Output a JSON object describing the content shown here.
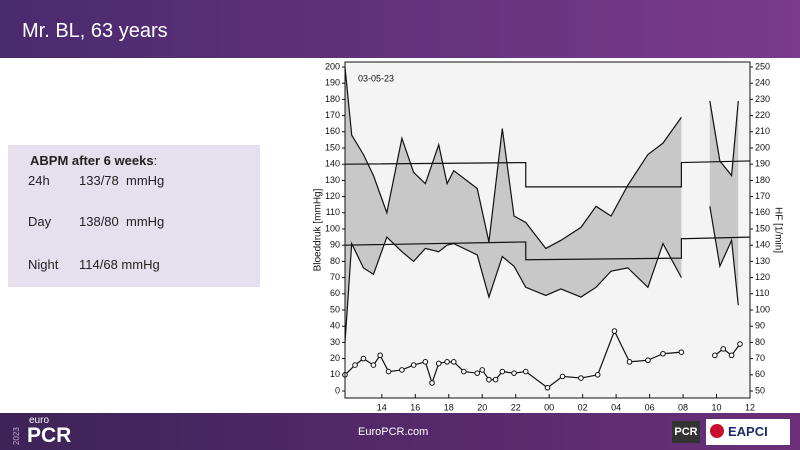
{
  "header": {
    "title": "Mr. BL, 63 years"
  },
  "panel": {
    "heading": "ABPM after 6 weeks",
    "heading_punct": ":",
    "rows": [
      [
        "24h",
        "133/78  mmHg"
      ],
      [
        "Day",
        "138/80  mmHg"
      ],
      [
        "Night",
        "114/68 mmHg"
      ]
    ]
  },
  "footer": {
    "logo_year": "2023",
    "logo_euro": "euro",
    "logo_pcr": "PCR",
    "url": "EuroPCR.com",
    "badge": "PCR",
    "eapci": "EAPCI"
  },
  "chart_data": {
    "type": "line",
    "annotation": "03-05-23",
    "ylabel": "Bloeddruk [mmHg]",
    "y2label": "HF [1/min]",
    "xlim": [
      11.8,
      36
    ],
    "ylim": [
      0,
      200
    ],
    "y2lim": [
      50,
      250
    ],
    "xticks": [
      {
        "value": 14,
        "label": "14"
      },
      {
        "value": 16,
        "label": "16"
      },
      {
        "value": 18,
        "label": "18"
      },
      {
        "value": 20,
        "label": "20"
      },
      {
        "value": 22,
        "label": "22"
      },
      {
        "value": 24,
        "label": "00"
      },
      {
        "value": 26,
        "label": "02"
      },
      {
        "value": 28,
        "label": "04"
      },
      {
        "value": 30,
        "label": "06"
      },
      {
        "value": 32,
        "label": "08"
      },
      {
        "value": 34,
        "label": "10"
      },
      {
        "value": 36,
        "label": "12"
      }
    ],
    "yticks": [
      0,
      10,
      20,
      30,
      40,
      50,
      60,
      70,
      80,
      90,
      100,
      110,
      120,
      130,
      140,
      150,
      160,
      170,
      180,
      190,
      200
    ],
    "y2ticks": [
      50,
      60,
      70,
      80,
      90,
      100,
      110,
      120,
      130,
      140,
      150,
      160,
      170,
      180,
      190,
      200,
      210,
      220,
      230,
      240,
      250
    ],
    "band_fill": "#c8c8c8",
    "series": [
      {
        "color": "#111111",
        "x": [
          11.8,
          12.2,
          12.9,
          13.5,
          14.3,
          15.2,
          15.9,
          16.6,
          17.4,
          17.9,
          18.3,
          19.7,
          20.4,
          21.2,
          21.9,
          22.6,
          23.8,
          24.7,
          25.9,
          26.8,
          27.7,
          28.7,
          29.9,
          30.8,
          31.9,
          null,
          33.6,
          34.2,
          34.9,
          35.3
        ],
        "values": [
          200,
          158,
          146,
          133,
          110,
          156,
          135,
          128,
          152,
          128,
          136,
          125,
          92,
          162,
          108,
          104,
          88,
          93,
          101,
          114,
          108,
          127,
          146,
          153,
          169,
          null,
          179,
          142,
          133,
          179
        ]
      },
      {
        "color": "#111111",
        "x": [
          11.8,
          12.2,
          12.9,
          13.5,
          14.3,
          15.2,
          15.9,
          16.6,
          17.4,
          17.9,
          18.3,
          19.7,
          20.4,
          21.2,
          21.9,
          22.6,
          23.8,
          24.7,
          25.9,
          26.8,
          27.7,
          28.7,
          29.9,
          30.8,
          31.9,
          null,
          33.6,
          34.2,
          34.9,
          35.3
        ],
        "values": [
          30,
          91,
          76,
          72,
          95,
          86,
          80,
          88,
          86,
          90,
          91,
          84,
          58,
          83,
          77,
          64,
          59,
          63,
          58,
          64,
          74,
          76,
          64,
          91,
          70,
          null,
          114,
          77,
          93,
          53
        ]
      },
      {
        "color": "#111111",
        "axis": "y2",
        "marker": "circle",
        "x": [
          11.8,
          12.4,
          12.9,
          13.5,
          13.9,
          14.4,
          15.2,
          15.9,
          16.6,
          17.0,
          17.4,
          17.9,
          18.3,
          18.9,
          19.7,
          20.0,
          20.4,
          20.8,
          21.2,
          21.9,
          22.6,
          23.9,
          24.8,
          25.9,
          26.9,
          27.9,
          28.8,
          29.9,
          30.8,
          31.9,
          null,
          33.9,
          34.4,
          34.9,
          35.4
        ],
        "values": [
          60,
          66,
          70,
          66,
          72,
          62,
          63,
          66,
          68,
          55,
          67,
          68,
          68,
          62,
          61,
          63,
          57,
          57,
          62,
          61,
          62,
          52,
          59,
          58,
          60,
          87,
          68,
          69,
          73,
          74,
          null,
          72,
          76,
          72,
          79
        ]
      },
      {
        "color": "#111111",
        "x": [
          11.8,
          22.6,
          22.6,
          31.9,
          31.9,
          36
        ],
        "values": [
          140,
          141,
          126,
          126,
          141,
          142
        ]
      },
      {
        "color": "#111111",
        "x": [
          11.8,
          22.6,
          22.6,
          31.9,
          31.9,
          36
        ],
        "values": [
          90,
          92,
          81,
          82,
          94,
          95
        ]
      }
    ]
  }
}
